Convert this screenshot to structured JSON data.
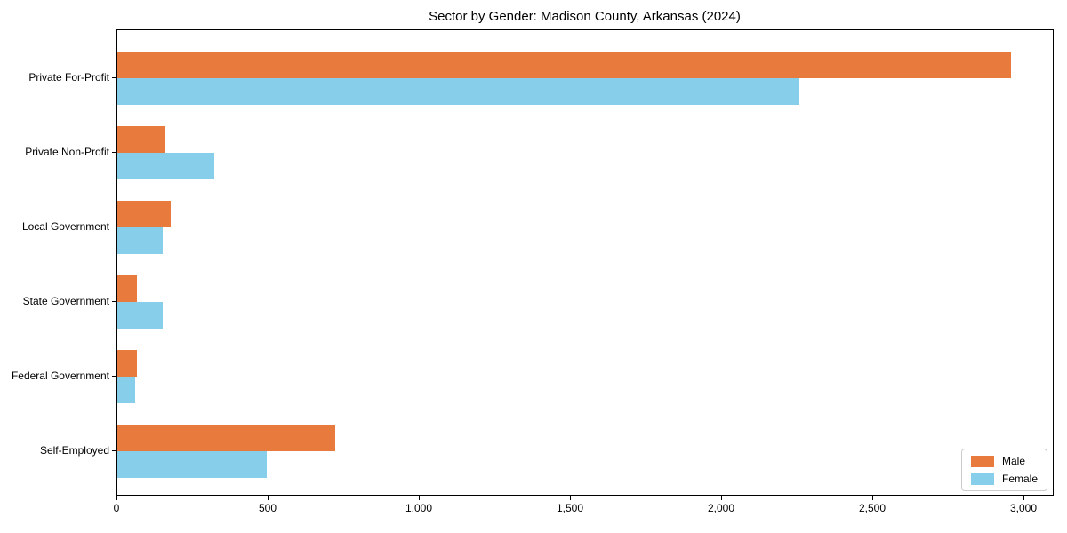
{
  "chart_data": {
    "type": "bar",
    "orientation": "horizontal",
    "title": "Sector by Gender: Madison County, Arkansas (2024)",
    "categories": [
      "Private For-Profit",
      "Private Non-Profit",
      "Local Government",
      "State Government",
      "Federal Government",
      "Self-Employed"
    ],
    "series": [
      {
        "name": "Male",
        "color": "#E87A3E",
        "values": [
          2955,
          160,
          175,
          65,
          65,
          720
        ]
      },
      {
        "name": "Female",
        "color": "#87CEEB",
        "values": [
          2255,
          320,
          150,
          150,
          60,
          495
        ]
      }
    ],
    "xlabel": "",
    "ylabel": "",
    "xlim": [
      0,
      3097
    ],
    "xticks": [
      {
        "value": 0,
        "label": "0"
      },
      {
        "value": 500,
        "label": "500"
      },
      {
        "value": 1000,
        "label": "1,000"
      },
      {
        "value": 1500,
        "label": "1,500"
      },
      {
        "value": 2000,
        "label": "2,000"
      },
      {
        "value": 2500,
        "label": "2,500"
      },
      {
        "value": 3000,
        "label": "3,000"
      }
    ],
    "grid": false,
    "legend_position": "lower right",
    "frame_color": "#000000",
    "background_color": "#ffffff"
  }
}
